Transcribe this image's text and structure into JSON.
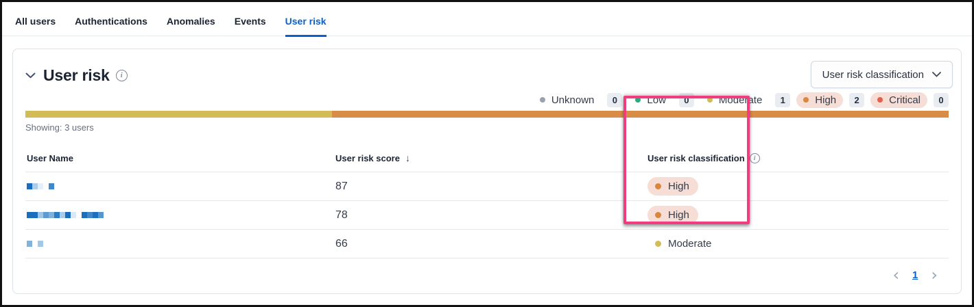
{
  "tabs": [
    {
      "label": "All users",
      "active": false
    },
    {
      "label": "Authentications",
      "active": false
    },
    {
      "label": "Anomalies",
      "active": false
    },
    {
      "label": "Events",
      "active": false
    },
    {
      "label": "User risk",
      "active": true
    }
  ],
  "panel": {
    "title": "User risk",
    "filter_dropdown": {
      "label": "User risk classification"
    },
    "legend": [
      {
        "label": "Unknown",
        "count": "0",
        "dot_color": "#98a2b3",
        "pill": false
      },
      {
        "label": "Low",
        "count": "0",
        "dot_color": "#2bab7c",
        "pill": false
      },
      {
        "label": "Moderate",
        "count": "1",
        "dot_color": "#d3bc55",
        "pill": false
      },
      {
        "label": "High",
        "count": "2",
        "dot_color": "#d9873f",
        "pill": true
      },
      {
        "label": "Critical",
        "count": "0",
        "dot_color": "#e2604d",
        "pill": true
      }
    ],
    "distribution_bar": [
      {
        "label": "Moderate",
        "color": "#d3bc55",
        "fraction": 0.332
      },
      {
        "label": "High",
        "color": "#d98c46",
        "fraction": 0.668
      }
    ],
    "showing_text": "Showing: 3 users",
    "table": {
      "columns": [
        "User Name",
        "User risk score",
        "User risk classification"
      ],
      "rows": [
        {
          "name_blocks": [
            "#1b6ebe",
            "#aecde9",
            "#e6eff7",
            "",
            "#4287c7"
          ],
          "score": "87",
          "classification": "High",
          "dot_color": "#d9873f",
          "pill": true
        },
        {
          "name_blocks": [
            "#1b6ebe",
            "#1b6ebe",
            "#9ec5e4",
            "#5f9ad0",
            "#7fb0da",
            "#2d7bc2",
            "#a9cbe7",
            "#1b6ebe",
            "#d9e8f4",
            "",
            "#1b6ebe",
            "#4287c7",
            "#1d70c0",
            "#5795cd"
          ],
          "score": "78",
          "classification": "High",
          "dot_color": "#d9873f",
          "pill": true
        },
        {
          "name_blocks": [
            "#84b3da",
            "",
            "#a3c8e6"
          ],
          "score": "66",
          "classification": "Moderate",
          "dot_color": "#d3bc55",
          "pill": false
        }
      ]
    },
    "pagination": {
      "prev": "‹",
      "current_page": "1",
      "next": "›"
    }
  },
  "colors": {
    "accent_blue": "#0861ce",
    "highlight_pink": "#f13d80",
    "risk_pill_bg": "#f6ddd5"
  }
}
